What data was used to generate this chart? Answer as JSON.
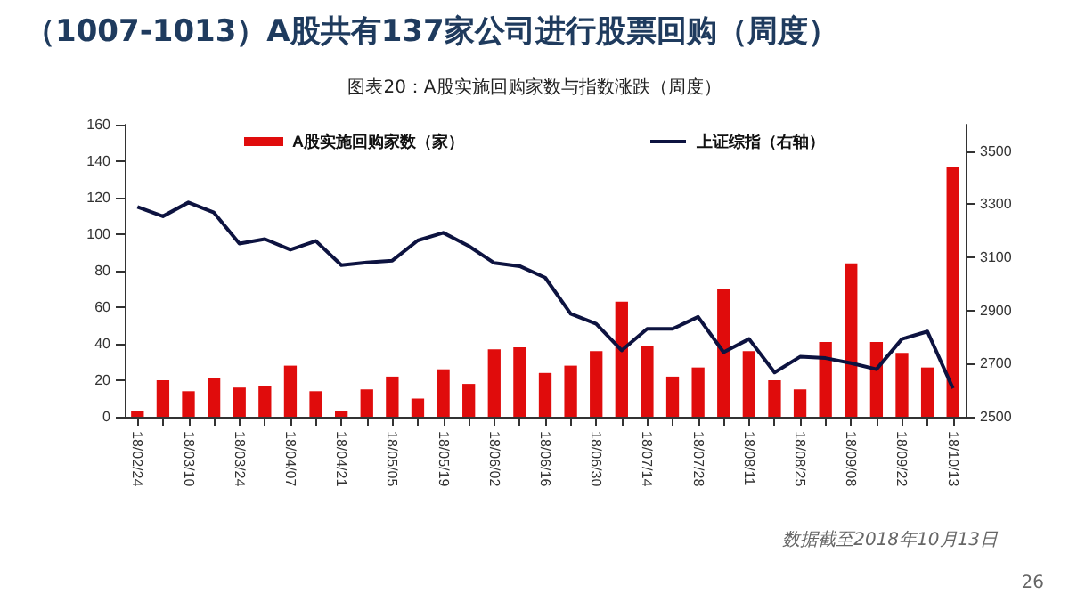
{
  "chart_data": {
    "type": "bar",
    "title": "（1007-1013）A股共有137家公司进行股票回购（周度）",
    "subtitle": "图表20：A股实施回购家数与指数涨跌（周度）",
    "categories": [
      "18/02/24",
      null,
      "18/03/10",
      null,
      "18/03/24",
      null,
      "18/04/07",
      null,
      "18/04/21",
      null,
      "18/05/05",
      null,
      "18/05/19",
      null,
      "18/06/02",
      null,
      "18/06/16",
      null,
      "18/06/30",
      null,
      "18/07/14",
      null,
      "18/07/28",
      null,
      "18/08/11",
      null,
      "18/08/25",
      null,
      "18/09/08",
      null,
      "18/09/22",
      null,
      "18/10/13"
    ],
    "series": [
      {
        "name": "A股实施回购家数（家）",
        "color": "#e00c0c",
        "values": [
          3,
          20,
          14,
          21,
          16,
          17,
          28,
          14,
          3,
          15,
          22,
          10,
          26,
          18,
          37,
          38,
          24,
          28,
          36,
          63,
          39,
          22,
          27,
          70,
          36,
          20,
          15,
          41,
          84,
          41,
          35,
          27,
          137
        ]
      },
      {
        "name": "上证综指（右轴）",
        "type": "line",
        "axis": "y2",
        "color": "#0d1340",
        "values": [
          3290,
          3255,
          3307,
          3269,
          3152,
          3169,
          3129,
          3162,
          3071,
          3081,
          3088,
          3164,
          3193,
          3143,
          3079,
          3067,
          3024,
          2888,
          2850,
          2750,
          2831,
          2831,
          2876,
          2743,
          2793,
          2667,
          2726,
          2721,
          2702,
          2679,
          2793,
          2821,
          2607
        ]
      }
    ],
    "ylim": [
      0,
      160
    ],
    "yticks": [
      0,
      20,
      40,
      60,
      80,
      100,
      120,
      140,
      160
    ],
    "y2lim": [
      2500,
      3600
    ],
    "y2ticks": [
      2500,
      2700,
      2900,
      3100,
      3300,
      3500
    ],
    "legend": "top",
    "annotations": [
      "数据截至2018年10月13日",
      "26"
    ]
  }
}
